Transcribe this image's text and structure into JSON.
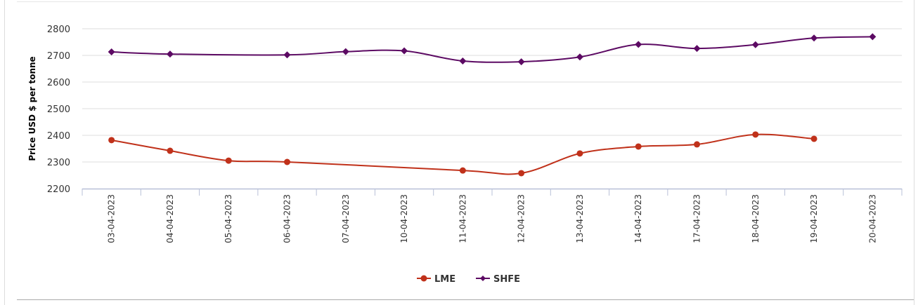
{
  "chart_data": {
    "type": "line",
    "title": "",
    "xlabel": "",
    "ylabel": "Price USD $ per tonne",
    "ylim": [
      2200,
      2800
    ],
    "yticks": [
      2200,
      2300,
      2400,
      2500,
      2600,
      2700,
      2800
    ],
    "grid": true,
    "legend_position": "bottom-center",
    "categories": [
      "03-04-2023",
      "04-04-2023",
      "05-04-2023",
      "06-04-2023",
      "07-04-2023",
      "10-04-2023",
      "11-04-2023",
      "12-04-2023",
      "13-04-2023",
      "14-04-2023",
      "17-04-2023",
      "18-04-2023",
      "19-04-2023",
      "20-04-2023"
    ],
    "series": [
      {
        "name": "LME",
        "color": "#c0311a",
        "marker": "circle",
        "values": [
          2382,
          2342,
          2305,
          2300,
          null,
          null,
          2268,
          2258,
          2332,
          2358,
          2366,
          2403,
          2387,
          null
        ]
      },
      {
        "name": "SHFE",
        "color": "#5c0a63",
        "marker": "diamond",
        "values": [
          2713,
          2705,
          null,
          2702,
          2714,
          2717,
          2679,
          2676,
          2694,
          2741,
          2726,
          2740,
          2765,
          2770
        ]
      }
    ]
  }
}
